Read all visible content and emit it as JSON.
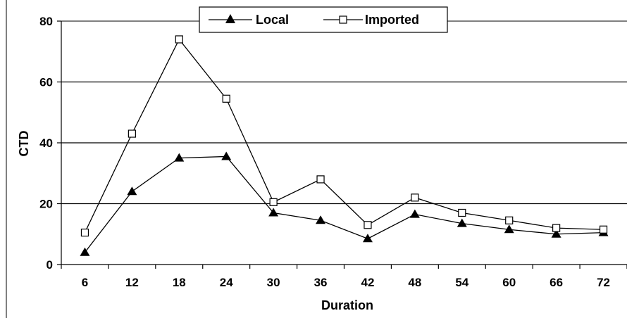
{
  "chart_data": {
    "type": "line",
    "title": "",
    "xlabel": "Duration",
    "ylabel": "CTD",
    "categories": [
      "6",
      "12",
      "18",
      "24",
      "30",
      "36",
      "42",
      "48",
      "54",
      "60",
      "66",
      "72"
    ],
    "ylim": [
      0,
      80
    ],
    "yticks": [
      "0",
      "20",
      "40",
      "60",
      "80"
    ],
    "grid": "horizontal",
    "legend_position": "top-center",
    "series": [
      {
        "name": "Local",
        "marker": "filled-triangle",
        "color": "#000000",
        "values": [
          4,
          24,
          35,
          35.5,
          17,
          14.5,
          8.5,
          16.5,
          13.5,
          11.5,
          10,
          10.5
        ]
      },
      {
        "name": "Imported",
        "marker": "open-square",
        "color": "#000000",
        "values": [
          10.5,
          43,
          74,
          54.5,
          20.5,
          28,
          13,
          22,
          17,
          14.5,
          12,
          11.5
        ]
      }
    ]
  }
}
